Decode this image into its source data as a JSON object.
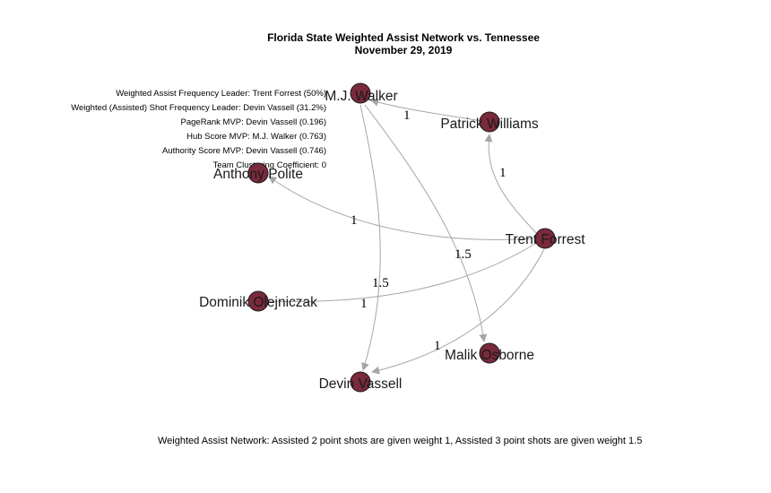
{
  "title": {
    "line1": "Florida State Weighted Assist Network vs. Tennessee",
    "line2": "November 29, 2019"
  },
  "stats": [
    "Weighted Assist Frequency Leader: Trent Forrest (50%)",
    "Weighted (Assisted) Shot Frequency Leader: Devin Vassell (31.2%)",
    "PageRank MVP: Devin Vassell (0.196)",
    "Hub Score MVP: M.J. Walker (0.763)",
    "Authority Score MVP: Devin Vassell (0.746)",
    "Team Clustering Coefficient: 0"
  ],
  "footer": "Weighted Assist Network: Assisted 2 point shots are given weight 1, Assisted 3 point shots are given weight 1.5",
  "node_color": "#7a2a3c",
  "edge_color": "#a6a6a6",
  "nodes": [
    {
      "id": "walker",
      "label": "M.J. Walker"
    },
    {
      "id": "williams",
      "label": "Patrick Williams"
    },
    {
      "id": "polite",
      "label": "Anthony Polite"
    },
    {
      "id": "forrest",
      "label": "Trent Forrest"
    },
    {
      "id": "olejniczak",
      "label": "Dominik Olejniczak"
    },
    {
      "id": "osborne",
      "label": "Malik Osborne"
    },
    {
      "id": "vassell",
      "label": "Devin Vassell"
    }
  ],
  "edges": [
    {
      "from": "williams",
      "to": "walker",
      "weight": "1"
    },
    {
      "from": "forrest",
      "to": "williams",
      "weight": "1"
    },
    {
      "from": "forrest",
      "to": "polite",
      "weight": "1"
    },
    {
      "from": "walker",
      "to": "osborne",
      "weight": "1.5"
    },
    {
      "from": "walker",
      "to": "vassell",
      "weight": "1.5"
    },
    {
      "from": "forrest",
      "to": "olejniczak",
      "weight": "1"
    },
    {
      "from": "forrest",
      "to": "vassell",
      "weight": "1"
    }
  ]
}
